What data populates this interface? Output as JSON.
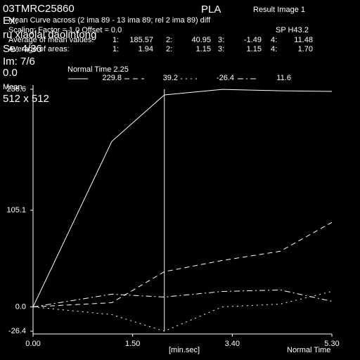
{
  "overlay": {
    "patient_id": "03TMRC25860",
    "ex": "Ex:",
    "name": "ru xiaolai daolinfong",
    "series_info": "Se: 4/36",
    "image_info": "Im: 7/6",
    "zero": "0.0",
    "matrix": "512 x 512",
    "mean_label": "Mean",
    "region": "PLA",
    "result": "Result Image 1",
    "description": "Mean Curve across (2 ima 89 - 13 ima 89;  rel 2 ima 89) diff",
    "scaling": "Scaling:    Factor = 1.0    Offset = 0.0",
    "position": "SP H43.2",
    "mean_values": {
      "label": "Average of mean values:",
      "items": [
        [
          "1:",
          "185.57"
        ],
        [
          "2:",
          "40.95"
        ],
        [
          "3:",
          "-1.49"
        ],
        [
          "4:",
          "11.48"
        ]
      ]
    },
    "areas": {
      "label": "Average of areas:",
      "items": [
        [
          "1:",
          "1.94"
        ],
        [
          "2:",
          "1.15"
        ],
        [
          "3:",
          "1.15"
        ],
        [
          "4:",
          "1.70"
        ]
      ]
    }
  },
  "chart_data": {
    "type": "line",
    "x": [
      0,
      87,
      145,
      209,
      273,
      330
    ],
    "xlim": [
      0,
      330
    ],
    "xticks": [
      {
        "value": 0,
        "label": "0.00"
      },
      {
        "value": 110,
        "label": "1.50"
      },
      {
        "value": 220,
        "label": "3.40"
      },
      {
        "value": 330,
        "label": "5.30"
      }
    ],
    "ylim": [
      -26.4,
      236.6
    ],
    "yticks": [
      {
        "value": -26.4,
        "label": "-26.4"
      },
      {
        "value": 0,
        "label": "0.0"
      },
      {
        "value": 105.1,
        "label": "105.1"
      },
      {
        "value": 236.6,
        "label": "236.6"
      }
    ],
    "xlabel": "[min.sec]",
    "xlabel2": "Normal Time",
    "marker": {
      "value": 145,
      "label": "Normal Time 2.25"
    },
    "series": [
      {
        "name": "229.8",
        "color": "#ffffff",
        "dash": "none",
        "values": [
          0,
          180,
          230.5,
          236.5,
          235,
          234.3
        ]
      },
      {
        "name": "39.2",
        "color": "#ffffff",
        "dash": "7 5",
        "values": [
          0,
          4.6,
          38.3,
          50.5,
          60.5,
          91.9
        ]
      },
      {
        "name": "-26.4",
        "color": "#ffffff",
        "dash": "2 5",
        "values": [
          0,
          -8.4,
          -26.4,
          0,
          3.1,
          16.8
        ]
      },
      {
        "name": "11.6",
        "color": "#ffffff",
        "dash": "8 4 2 4",
        "values": [
          0,
          13.8,
          10.7,
          16.8,
          18.4,
          6.1
        ]
      }
    ]
  }
}
